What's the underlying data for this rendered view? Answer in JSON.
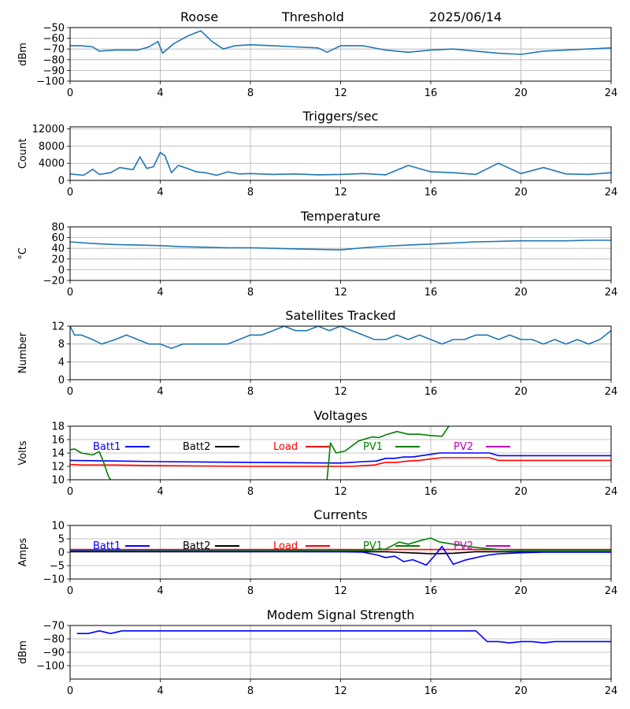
{
  "header": {
    "station": "Roose",
    "mode": "Threshold",
    "date": "2025/06/14"
  },
  "colors": {
    "default": "#1f77b4",
    "batt1": "#0000ff",
    "batt2": "#000000",
    "load": "#ff0000",
    "pv1": "#008000",
    "pv2": "#bf00bf",
    "grid": "#b0b0b0"
  },
  "chart_data": [
    {
      "type": "line",
      "title": "",
      "ylabel": "dBm",
      "xlim": [
        0,
        24
      ],
      "ylim": [
        -100,
        -50
      ],
      "xticks": [
        0,
        4,
        8,
        12,
        16,
        20,
        24
      ],
      "yticks": [
        -100,
        -90,
        -80,
        -70,
        -60,
        -50
      ],
      "grid": true,
      "series": [
        {
          "color": "#1f77b4",
          "x": [
            0,
            0.5,
            1,
            1.3,
            2,
            3,
            3.5,
            3.9,
            4.1,
            4.6,
            5.2,
            5.8,
            6.3,
            6.8,
            7.3,
            8,
            9,
            10,
            11,
            11.4,
            12,
            13,
            14,
            15,
            16,
            17,
            18,
            19,
            20,
            21,
            22,
            23,
            24
          ],
          "y": [
            -67,
            -67,
            -68,
            -72,
            -71,
            -71,
            -68,
            -63,
            -74,
            -65,
            -58,
            -53,
            -63,
            -70,
            -67,
            -66,
            -67,
            -68,
            -69,
            -73,
            -67,
            -67,
            -71,
            -73,
            -71,
            -70,
            -72,
            -74,
            -75,
            -72,
            -71,
            -70,
            -69
          ]
        }
      ]
    },
    {
      "type": "line",
      "title": "Triggers/sec",
      "ylabel": "Count",
      "xlim": [
        0,
        24
      ],
      "ylim": [
        0,
        12500
      ],
      "xticks": [
        0,
        4,
        8,
        12,
        16,
        20,
        24
      ],
      "yticks": [
        0,
        4000,
        8000,
        12000
      ],
      "grid": true,
      "series": [
        {
          "color": "#1f77b4",
          "x": [
            0,
            0.6,
            1,
            1.3,
            1.8,
            2.2,
            2.8,
            3.1,
            3.4,
            3.7,
            4,
            4.2,
            4.5,
            4.8,
            5.2,
            5.6,
            6,
            6.5,
            7,
            7.5,
            8,
            9,
            10,
            11,
            12,
            13,
            14,
            15,
            16,
            17,
            18,
            19,
            20,
            21,
            22,
            23,
            24
          ],
          "y": [
            1500,
            1200,
            2600,
            1400,
            1800,
            3000,
            2500,
            5500,
            2800,
            3200,
            6500,
            5800,
            1800,
            3500,
            2800,
            2000,
            1800,
            1200,
            2000,
            1500,
            1600,
            1400,
            1500,
            1300,
            1400,
            1600,
            1300,
            3500,
            2000,
            1800,
            1400,
            4000,
            1600,
            3000,
            1500,
            1400,
            1800
          ]
        }
      ]
    },
    {
      "type": "line",
      "title": "Temperature",
      "ylabel": "°C",
      "xlim": [
        0,
        24
      ],
      "ylim": [
        -20,
        80
      ],
      "xticks": [
        0,
        4,
        8,
        12,
        16,
        20,
        24
      ],
      "yticks": [
        -20,
        0,
        20,
        40,
        60,
        80
      ],
      "grid": true,
      "series": [
        {
          "color": "#1f77b4",
          "x": [
            0,
            1,
            2,
            3,
            4,
            5,
            6,
            7,
            8,
            9,
            10,
            11,
            12,
            13,
            14,
            15,
            16,
            17,
            18,
            19,
            20,
            21,
            22,
            23,
            24
          ],
          "y": [
            52,
            49,
            47,
            46,
            45,
            43,
            42,
            41,
            41,
            40,
            39,
            38,
            37,
            41,
            44,
            46,
            48,
            50,
            52,
            53,
            54,
            54,
            54,
            55,
            55
          ]
        }
      ]
    },
    {
      "type": "line",
      "title": "Satellites Tracked",
      "ylabel": "Number",
      "xlim": [
        0,
        24
      ],
      "ylim": [
        0,
        12
      ],
      "xticks": [
        0,
        4,
        8,
        12,
        16,
        20,
        24
      ],
      "yticks": [
        0,
        4,
        8,
        12
      ],
      "grid": true,
      "series": [
        {
          "color": "#1f77b4",
          "x": [
            0,
            0.2,
            0.5,
            1,
            1.4,
            2,
            2.5,
            3,
            3.5,
            4,
            4.5,
            5,
            5.5,
            6,
            6.5,
            7,
            7.5,
            8,
            8.5,
            9,
            9.5,
            10,
            10.5,
            11,
            11.5,
            12,
            12.5,
            13,
            13.5,
            14,
            14.5,
            15,
            15.5,
            16,
            16.5,
            17,
            17.5,
            18,
            18.5,
            19,
            19.5,
            20,
            20.5,
            21,
            21.5,
            22,
            22.5,
            23,
            23.5,
            24
          ],
          "y": [
            12,
            10,
            10,
            9,
            8,
            9,
            10,
            9,
            8,
            8,
            7,
            8,
            8,
            8,
            8,
            8,
            9,
            10,
            10,
            11,
            12,
            11,
            11,
            12,
            11,
            12,
            11,
            10,
            9,
            9,
            10,
            9,
            10,
            9,
            8,
            9,
            9,
            10,
            10,
            9,
            10,
            9,
            9,
            8,
            9,
            8,
            9,
            8,
            9,
            11
          ]
        }
      ]
    },
    {
      "type": "line",
      "title": "Voltages",
      "ylabel": "Volts",
      "xlim": [
        0,
        24
      ],
      "ylim": [
        10,
        18
      ],
      "xticks": [
        0,
        4,
        8,
        12,
        16,
        20,
        24
      ],
      "yticks": [
        10,
        12,
        14,
        16,
        18
      ],
      "grid": true,
      "legend": [
        "Batt1",
        "Batt2",
        "Load",
        "PV1",
        "PV2"
      ],
      "series": [
        {
          "name": "Batt1",
          "color": "#0000ff",
          "x": [
            0,
            2,
            4,
            8,
            12,
            13,
            13.6,
            14,
            14.4,
            14.8,
            15.2,
            16,
            16.4,
            17,
            18.6,
            19,
            24
          ],
          "y": [
            12.9,
            12.8,
            12.7,
            12.6,
            12.5,
            12.7,
            12.8,
            13.2,
            13.2,
            13.4,
            13.4,
            13.8,
            14.0,
            14.0,
            14.0,
            13.6,
            13.6
          ]
        },
        {
          "name": "Load",
          "color": "#ff0000",
          "x": [
            0,
            0.5,
            2,
            4,
            8,
            12,
            12.5,
            13,
            13.5,
            14,
            14.5,
            15,
            15.5,
            16,
            16.5,
            17,
            18.6,
            19,
            24
          ],
          "y": [
            12.3,
            12.2,
            12.2,
            12.1,
            12.0,
            12.0,
            12.0,
            12.1,
            12.2,
            12.6,
            12.6,
            12.8,
            12.9,
            13.1,
            13.3,
            13.3,
            13.3,
            12.9,
            12.9
          ]
        },
        {
          "name": "PV1",
          "color": "#008000",
          "x": [
            0,
            0.2,
            0.5,
            1,
            1.3,
            1.5,
            1.7,
            1.8
          ],
          "y": [
            14.5,
            14.6,
            14.0,
            13.7,
            14.2,
            12.5,
            10.5,
            10
          ]
        },
        {
          "name": "PV1",
          "color": "#008000",
          "x": [
            11.4,
            11.55,
            11.8,
            12.2,
            12.8,
            13.4,
            13.7,
            14,
            14.5,
            15,
            15.5,
            16,
            16.5,
            16.8
          ],
          "y": [
            10,
            15.5,
            14.0,
            14.3,
            15.8,
            16.4,
            16.3,
            16.7,
            17.2,
            16.8,
            16.8,
            16.6,
            16.5,
            18
          ]
        }
      ]
    },
    {
      "type": "line",
      "title": "Currents",
      "ylabel": "Amps",
      "xlim": [
        0,
        24
      ],
      "ylim": [
        -10,
        10
      ],
      "xticks": [
        0,
        4,
        8,
        12,
        16,
        20,
        24
      ],
      "yticks": [
        -10,
        -5,
        0,
        5,
        10
      ],
      "grid": true,
      "legend": [
        "Batt1",
        "Batt2",
        "Load",
        "PV1",
        "PV2"
      ],
      "series": [
        {
          "name": "Load",
          "color": "#ff0000",
          "x": [
            0,
            24
          ],
          "y": [
            1.0,
            1.0
          ]
        },
        {
          "name": "PV1",
          "color": "#008000",
          "x": [
            0,
            12,
            13,
            14,
            14.6,
            15,
            15.6,
            16,
            16.4,
            17,
            18,
            19,
            20,
            21,
            24
          ],
          "y": [
            0.6,
            0.6,
            0.6,
            1.2,
            3.8,
            3.0,
            4.5,
            5.3,
            3.8,
            3.0,
            1.8,
            1.0,
            0.8,
            0.8,
            0.8
          ]
        },
        {
          "name": "Batt2",
          "color": "#000000",
          "x": [
            0,
            12,
            14,
            15,
            16,
            17,
            18,
            24
          ],
          "y": [
            0.2,
            0.2,
            0.2,
            -0.2,
            -0.6,
            -0.4,
            0.2,
            0.2
          ]
        },
        {
          "name": "Batt1",
          "color": "#0000ff",
          "x": [
            0,
            12,
            13,
            13.6,
            14,
            14.4,
            14.8,
            15.2,
            15.8,
            16.2,
            16.5,
            17,
            17.5,
            18,
            18.6,
            19,
            20,
            21,
            24
          ],
          "y": [
            0.4,
            0.2,
            0.0,
            -1.0,
            -2.0,
            -1.5,
            -3.5,
            -2.8,
            -4.8,
            -1.0,
            2.2,
            -4.5,
            -3.0,
            -2.0,
            -1.0,
            -0.6,
            -0.2,
            0.0,
            0.0
          ]
        }
      ]
    },
    {
      "type": "line",
      "title": "Modem Signal Strength",
      "ylabel": "dBm",
      "xlim": [
        0,
        24
      ],
      "ylim": [
        -110,
        -70
      ],
      "xticks": [
        0,
        4,
        8,
        12,
        16,
        20,
        24
      ],
      "yticks": [
        -100,
        -90,
        -80,
        -70
      ],
      "grid": true,
      "series": [
        {
          "color": "#0000ff",
          "x": [
            0.3,
            0.8,
            1.3,
            1.8,
            2.3,
            4,
            8,
            12,
            16,
            17.5,
            18,
            18.5,
            19,
            19.5,
            20,
            20.5,
            21,
            21.5,
            22,
            24
          ],
          "y": [
            -76,
            -76,
            -74,
            -76,
            -74,
            -74,
            -74,
            -74,
            -74,
            -74,
            -74,
            -82,
            -82,
            -83,
            -82,
            -82,
            -83,
            -82,
            -82,
            -82
          ]
        }
      ]
    }
  ]
}
